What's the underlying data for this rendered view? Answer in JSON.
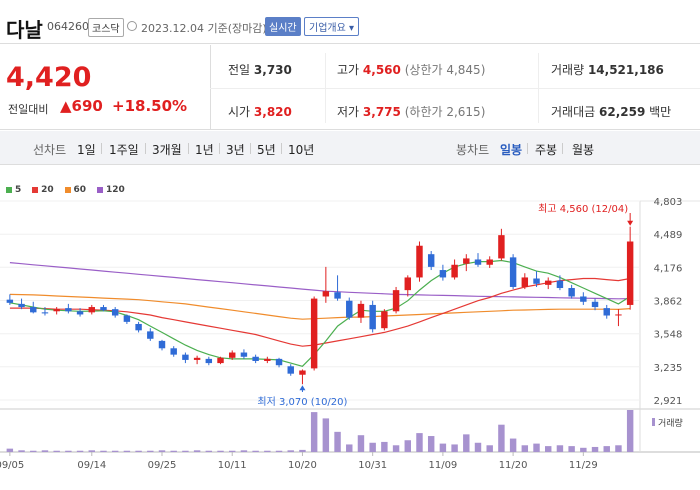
{
  "header": {
    "name": "다날",
    "code": "064260",
    "market": "코스닥",
    "date": "2023.12.04 기준(장마감)",
    "live_label": "실시간",
    "info_label": "기업개요"
  },
  "quote": {
    "price": "4,420",
    "change_label": "전일대비",
    "change_value": "▲690",
    "change_pct": "+18.50%",
    "prev_label": "전일",
    "prev_value": "3,730",
    "high_label": "고가",
    "high_value": "4,560",
    "upper_limit": "(상한가 4,845)",
    "volume_label": "거래량",
    "volume_value": "14,521,186",
    "open_label": "시가",
    "open_value": "3,820",
    "low_label": "저가",
    "low_value": "3,775",
    "lower_limit": "(하한가 2,615)",
    "amount_label": "거래대금",
    "amount_value": "62,259",
    "amount_unit": "백만"
  },
  "period_bar": {
    "line_label": "선차트",
    "line_items": [
      "1일",
      "1주일",
      "3개월",
      "1년",
      "3년",
      "5년",
      "10년"
    ],
    "candle_label": "봉차트",
    "candle_items": [
      "일봉",
      "주봉",
      "월봉"
    ],
    "active_candle": "일봉"
  },
  "colors": {
    "up": "#e02020",
    "down": "#2f6bd6",
    "ma5": "#4caf50",
    "ma20": "#e53935",
    "ma60": "#f08c2c",
    "ma120": "#9a5fc7"
  },
  "chart_data": {
    "type": "candlestick",
    "legend": [
      {
        "name": "5",
        "color": "#4caf50"
      },
      {
        "name": "20",
        "color": "#e53935"
      },
      {
        "name": "60",
        "color": "#f08c2c"
      },
      {
        "name": "120",
        "color": "#9a5fc7"
      }
    ],
    "y_ticks": [
      "4,803",
      "4,489",
      "4,176",
      "3,862",
      "3,548",
      "3,235",
      "2,921"
    ],
    "ylim": [
      2921,
      4803
    ],
    "x_labels": [
      "09/05",
      "09/14",
      "09/25",
      "10/11",
      "10/20",
      "10/31",
      "11/09",
      "11/20",
      "11/29"
    ],
    "x_label_index": [
      0,
      7,
      13,
      19,
      25,
      31,
      37,
      43,
      49
    ],
    "high_annotation": "최고 4,560 (12/04)",
    "low_annotation": "최저 3,070 (10/20)",
    "volume_label": "거래량",
    "candles": [
      [
        3870,
        3920,
        3820,
        3840
      ],
      [
        3830,
        3880,
        3780,
        3800
      ],
      [
        3800,
        3850,
        3740,
        3750
      ],
      [
        3750,
        3800,
        3720,
        3740
      ],
      [
        3760,
        3800,
        3730,
        3780
      ],
      [
        3790,
        3830,
        3740,
        3760
      ],
      [
        3760,
        3790,
        3710,
        3730
      ],
      [
        3750,
        3820,
        3730,
        3800
      ],
      [
        3800,
        3820,
        3760,
        3770
      ],
      [
        3780,
        3800,
        3700,
        3720
      ],
      [
        3720,
        3730,
        3640,
        3660
      ],
      [
        3640,
        3660,
        3560,
        3580
      ],
      [
        3570,
        3600,
        3480,
        3500
      ],
      [
        3480,
        3490,
        3390,
        3410
      ],
      [
        3410,
        3430,
        3330,
        3350
      ],
      [
        3350,
        3370,
        3270,
        3300
      ],
      [
        3300,
        3340,
        3260,
        3320
      ],
      [
        3310,
        3330,
        3250,
        3270
      ],
      [
        3270,
        3330,
        3260,
        3320
      ],
      [
        3320,
        3390,
        3300,
        3370
      ],
      [
        3370,
        3400,
        3310,
        3330
      ],
      [
        3330,
        3350,
        3270,
        3290
      ],
      [
        3290,
        3330,
        3270,
        3310
      ],
      [
        3310,
        3320,
        3230,
        3250
      ],
      [
        3240,
        3260,
        3150,
        3170
      ],
      [
        3160,
        3210,
        3070,
        3200
      ],
      [
        3220,
        3900,
        3200,
        3880
      ],
      [
        3900,
        4180,
        3840,
        3950
      ],
      [
        3940,
        4100,
        3860,
        3880
      ],
      [
        3860,
        3890,
        3680,
        3700
      ],
      [
        3700,
        3860,
        3650,
        3830
      ],
      [
        3820,
        3860,
        3560,
        3590
      ],
      [
        3600,
        3780,
        3580,
        3760
      ],
      [
        3760,
        3990,
        3740,
        3960
      ],
      [
        3960,
        4100,
        3900,
        4080
      ],
      [
        4080,
        4420,
        4040,
        4380
      ],
      [
        4300,
        4330,
        4150,
        4180
      ],
      [
        4150,
        4200,
        4050,
        4080
      ],
      [
        4080,
        4250,
        4060,
        4200
      ],
      [
        4210,
        4300,
        4140,
        4260
      ],
      [
        4250,
        4310,
        4180,
        4200
      ],
      [
        4200,
        4280,
        4170,
        4250
      ],
      [
        4260,
        4540,
        4240,
        4480
      ],
      [
        4270,
        4300,
        3970,
        3990
      ],
      [
        3990,
        4120,
        3970,
        4080
      ],
      [
        4070,
        4140,
        3990,
        4020
      ],
      [
        4010,
        4080,
        3970,
        4050
      ],
      [
        4050,
        4100,
        3960,
        3980
      ],
      [
        3980,
        4010,
        3880,
        3900
      ],
      [
        3900,
        3940,
        3820,
        3850
      ],
      [
        3850,
        3880,
        3770,
        3800
      ],
      [
        3790,
        3820,
        3690,
        3720
      ],
      [
        3730,
        3780,
        3620,
        3730
      ],
      [
        3820,
        4560,
        3775,
        4420
      ]
    ],
    "volume": [
      8,
      4,
      3,
      4,
      3,
      3,
      3,
      4,
      3,
      3,
      3,
      3,
      3,
      4,
      3,
      3,
      4,
      3,
      3,
      3,
      4,
      3,
      3,
      3,
      4,
      5,
      95,
      80,
      48,
      18,
      40,
      22,
      24,
      16,
      28,
      45,
      38,
      20,
      18,
      42,
      22,
      16,
      65,
      32,
      16,
      20,
      14,
      16,
      14,
      10,
      12,
      14,
      16,
      100
    ],
    "ma5": [
      3840,
      3820,
      3800,
      3780,
      3770,
      3765,
      3760,
      3762,
      3765,
      3755,
      3720,
      3680,
      3620,
      3560,
      3500,
      3440,
      3390,
      3350,
      3320,
      3310,
      3310,
      3310,
      3305,
      3300,
      3270,
      3240,
      3350,
      3480,
      3620,
      3700,
      3770,
      3760,
      3760,
      3790,
      3860,
      3960,
      4050,
      4120,
      4180,
      4210,
      4230,
      4230,
      4240,
      4220,
      4180,
      4140,
      4120,
      4080,
      4030,
      3980,
      3930,
      3880,
      3830,
      3900
    ],
    "ma20": [
      3790,
      3790,
      3790,
      3785,
      3780,
      3780,
      3780,
      3775,
      3770,
      3765,
      3755,
      3740,
      3725,
      3700,
      3680,
      3660,
      3640,
      3620,
      3600,
      3580,
      3560,
      3540,
      3510,
      3480,
      3450,
      3430,
      3440,
      3460,
      3480,
      3500,
      3520,
      3540,
      3560,
      3590,
      3620,
      3660,
      3700,
      3740,
      3780,
      3820,
      3860,
      3890,
      3930,
      3960,
      3990,
      4010,
      4030,
      4050,
      4060,
      4070,
      4070,
      4060,
      4050,
      4070
    ],
    "ma60": [
      3920,
      3918,
      3915,
      3910,
      3905,
      3900,
      3895,
      3890,
      3885,
      3880,
      3875,
      3870,
      3860,
      3850,
      3840,
      3830,
      3815,
      3800,
      3785,
      3770,
      3755,
      3740,
      3725,
      3710,
      3695,
      3685,
      3690,
      3695,
      3700,
      3705,
      3705,
      3710,
      3715,
      3720,
      3725,
      3730,
      3735,
      3740,
      3745,
      3750,
      3755,
      3760,
      3765,
      3770,
      3772,
      3775,
      3778,
      3780,
      3780,
      3780,
      3780,
      3780,
      3778,
      3785
    ],
    "ma120": [
      4220,
      4210,
      4200,
      4190,
      4180,
      4170,
      4160,
      4150,
      4140,
      4130,
      4120,
      4110,
      4100,
      4090,
      4080,
      4070,
      4060,
      4050,
      4040,
      4030,
      4020,
      4010,
      4000,
      3990,
      3980,
      3970,
      3960,
      3950,
      3945,
      3940,
      3935,
      3930,
      3925,
      3920,
      3918,
      3915,
      3912,
      3910,
      3908,
      3905,
      3902,
      3900,
      3898,
      3896,
      3894,
      3892,
      3890,
      3888,
      3886,
      3884,
      3882,
      3880,
      3878,
      3880
    ]
  }
}
